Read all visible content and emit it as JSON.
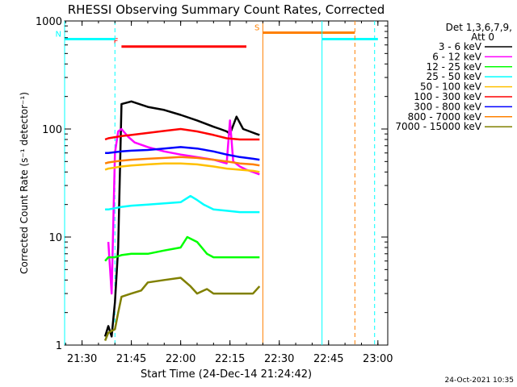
{
  "title": "RHESSI Observing Summary Count Rates, Corrected",
  "footer_date": "24-Oct-2021 10:35",
  "legend": {
    "header_line1": "Det 1,3,6,7,9,",
    "header_line2": "Att 0",
    "entries": [
      {
        "label": "3 - 6 keV",
        "color": "#000000"
      },
      {
        "label": "6 - 12 keV",
        "color": "#ff00ff"
      },
      {
        "label": "12 - 25 keV",
        "color": "#00ff00"
      },
      {
        "label": "25 - 50 keV",
        "color": "#00ffff"
      },
      {
        "label": "50 - 100 keV",
        "color": "#ffc000"
      },
      {
        "label": "100 - 300 keV",
        "color": "#ff0000"
      },
      {
        "label": "300 - 800 keV",
        "color": "#0000ff"
      },
      {
        "label": "800 - 7000 keV",
        "color": "#ff8000"
      },
      {
        "label": "7000 - 15000 keV",
        "color": "#808000"
      }
    ]
  },
  "chart_data": {
    "type": "line",
    "title": "RHESSI Observing Summary Count Rates, Corrected",
    "xlabel": "Start Time (24-Dec-14 21:24:42)",
    "ylabel": "Corrected Count Rate (s⁻¹ detector⁻¹)",
    "y_scale": "log",
    "ylim": [
      1,
      1000
    ],
    "xlim": [
      "21:24:42",
      "23:03:00"
    ],
    "x_ticks": [
      "21:30",
      "21:45",
      "22:00",
      "22:15",
      "22:30",
      "22:45",
      "23:00"
    ],
    "y_ticks": [
      "1",
      "10",
      "100",
      "1000"
    ],
    "grid": false,
    "legend_position": "right",
    "flag_bars": [
      {
        "label": "F",
        "start": "21:42",
        "end": "22:20",
        "color": "#ff0000",
        "level": 580
      },
      {
        "label": "N",
        "start": "21:24:42",
        "end": "21:40",
        "color": "#00ffff",
        "level": 680
      },
      {
        "label": "S",
        "start": "22:25",
        "end": "22:53",
        "color": "#ff8000",
        "level": 780
      },
      {
        "label": "",
        "start": "22:43",
        "end": "23:00",
        "color": "#00ffff",
        "level": 680
      }
    ],
    "vertical_markers": [
      {
        "time": "21:24:42",
        "color": "#00ffff",
        "style": "solid"
      },
      {
        "time": "21:40",
        "color": "#00ffff",
        "style": "dashed"
      },
      {
        "time": "22:25",
        "color": "#ff8000",
        "style": "solid"
      },
      {
        "time": "22:43",
        "color": "#00ffff",
        "style": "solid"
      },
      {
        "time": "22:53",
        "color": "#ff8000",
        "style": "dashed"
      },
      {
        "time": "22:59",
        "color": "#00ffff",
        "style": "dashed"
      }
    ],
    "series": [
      {
        "name": "3 - 6 keV",
        "color": "#000000",
        "x": [
          "21:37",
          "21:38",
          "21:39",
          "21:40",
          "21:41",
          "21:42",
          "21:45",
          "21:50",
          "21:55",
          "22:00",
          "22:05",
          "22:10",
          "22:12",
          "22:14",
          "22:15",
          "22:17",
          "22:19",
          "22:21",
          "22:23",
          "22:24"
        ],
        "y": [
          1.2,
          1.5,
          1.2,
          2.5,
          8,
          170,
          180,
          160,
          150,
          135,
          120,
          105,
          100,
          95,
          90,
          130,
          100,
          95,
          90,
          88
        ]
      },
      {
        "name": "6 - 12 keV",
        "color": "#ff00ff",
        "x": [
          "21:38",
          "21:39",
          "21:40",
          "21:41",
          "21:42",
          "21:44",
          "21:46",
          "21:50",
          "21:55",
          "22:00",
          "22:05",
          "22:10",
          "22:14",
          "22:15",
          "22:16",
          "22:18",
          "22:20",
          "22:22",
          "22:24"
        ],
        "y": [
          9,
          3,
          60,
          95,
          100,
          85,
          75,
          68,
          62,
          58,
          55,
          52,
          48,
          120,
          50,
          45,
          42,
          40,
          38
        ]
      },
      {
        "name": "12 - 25 keV",
        "color": "#00ff00",
        "x": [
          "21:37",
          "21:38",
          "21:40",
          "21:42",
          "21:45",
          "21:50",
          "21:55",
          "22:00",
          "22:02",
          "22:05",
          "22:08",
          "22:10",
          "22:14",
          "22:18",
          "22:22",
          "22:24"
        ],
        "y": [
          6,
          6.5,
          6.5,
          6.8,
          7,
          7,
          7.5,
          8,
          10,
          9,
          7,
          6.5,
          6.5,
          6.5,
          6.5,
          6.5
        ]
      },
      {
        "name": "25 - 50 keV",
        "color": "#00ffff",
        "x": [
          "21:37",
          "21:38",
          "21:40",
          "21:42",
          "21:45",
          "21:50",
          "21:55",
          "22:00",
          "22:03",
          "22:05",
          "22:07",
          "22:10",
          "22:14",
          "22:18",
          "22:22",
          "22:24"
        ],
        "y": [
          18,
          18,
          18.5,
          19,
          19.5,
          20,
          20.5,
          21,
          24,
          22,
          20,
          18,
          17.5,
          17,
          17,
          17
        ]
      },
      {
        "name": "50 - 100 keV",
        "color": "#ffc000",
        "x": [
          "21:37",
          "21:38",
          "21:40",
          "21:42",
          "21:45",
          "21:50",
          "21:55",
          "22:00",
          "22:05",
          "22:10",
          "22:14",
          "22:18",
          "22:22",
          "22:24"
        ],
        "y": [
          42,
          43,
          44,
          45,
          46,
          47,
          48,
          48,
          47,
          45,
          43,
          42,
          41,
          40
        ]
      },
      {
        "name": "100 - 300 keV",
        "color": "#ff0000",
        "x": [
          "21:37",
          "21:38",
          "21:40",
          "21:42",
          "21:45",
          "21:50",
          "21:55",
          "22:00",
          "22:05",
          "22:10",
          "22:14",
          "22:18",
          "22:22",
          "22:24"
        ],
        "y": [
          80,
          82,
          84,
          86,
          88,
          92,
          96,
          100,
          95,
          88,
          82,
          80,
          80,
          80
        ]
      },
      {
        "name": "300 - 800 keV",
        "color": "#0000ff",
        "x": [
          "21:37",
          "21:38",
          "21:40",
          "21:42",
          "21:45",
          "21:50",
          "21:55",
          "22:00",
          "22:05",
          "22:10",
          "22:14",
          "22:18",
          "22:22",
          "22:24"
        ],
        "y": [
          60,
          60,
          61,
          62,
          63,
          64,
          66,
          68,
          66,
          62,
          58,
          55,
          53,
          52
        ]
      },
      {
        "name": "800 - 7000 keV",
        "color": "#ff8000",
        "x": [
          "21:37",
          "21:38",
          "21:40",
          "21:42",
          "21:45",
          "21:50",
          "21:55",
          "22:00",
          "22:05",
          "22:10",
          "22:14",
          "22:18",
          "22:22",
          "22:24"
        ],
        "y": [
          48,
          49,
          50,
          51,
          52,
          53,
          54,
          55,
          54,
          52,
          50,
          48,
          47,
          46
        ]
      },
      {
        "name": "7000 - 15000 keV",
        "color": "#808000",
        "x": [
          "21:37",
          "21:38",
          "21:40",
          "21:41",
          "21:42",
          "21:45",
          "21:48",
          "21:50",
          "21:55",
          "22:00",
          "22:03",
          "22:05",
          "22:08",
          "22:10",
          "22:14",
          "22:18",
          "22:22",
          "22:24"
        ],
        "y": [
          1.1,
          1.3,
          1.4,
          2,
          2.8,
          3,
          3.2,
          3.8,
          4,
          4.2,
          3.5,
          3,
          3.3,
          3,
          3,
          3,
          3,
          3.5
        ]
      }
    ]
  }
}
